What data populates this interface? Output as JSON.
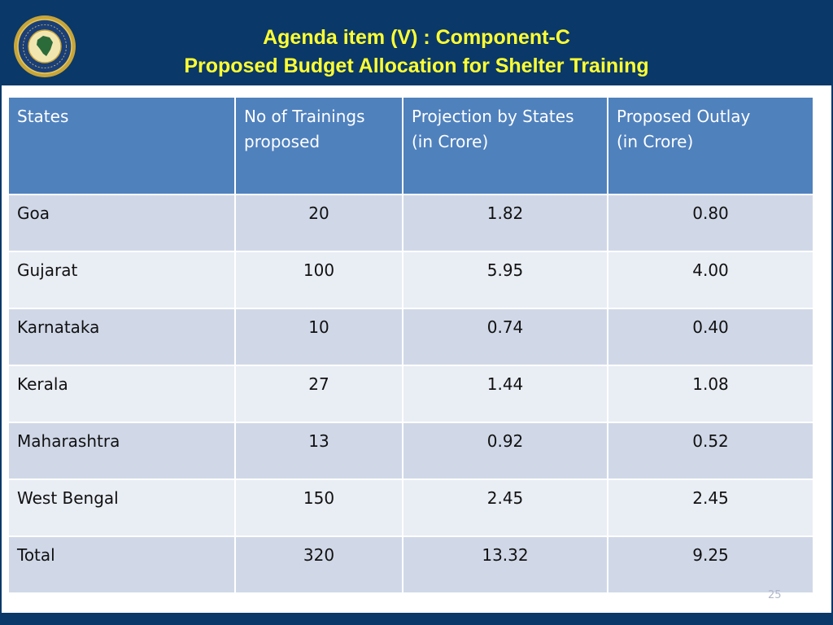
{
  "header": {
    "title_line1": "Agenda item (V) : Component-C",
    "title_line2": "Proposed Budget Allocation  for Shelter Training",
    "logo_icon": "disaster-management-seal-icon",
    "colors": {
      "band": "#0a3868",
      "title": "#ffff33"
    }
  },
  "table": {
    "columns": [
      "States",
      "No of Trainings proposed",
      "Projection by States (in Crore)",
      "Proposed Outlay (in Crore)"
    ],
    "header_lines": [
      [
        "States"
      ],
      [
        "No of Trainings",
        "proposed"
      ],
      [
        "Projection by States",
        "(in Crore)"
      ],
      [
        "Proposed Outlay",
        "(in Crore)"
      ]
    ],
    "rows": [
      [
        "Goa",
        "20",
        "1.82",
        "0.80"
      ],
      [
        "Gujarat",
        "100",
        "5.95",
        "4.00"
      ],
      [
        "Karnataka",
        "10",
        "0.74",
        "0.40"
      ],
      [
        "Kerala",
        "27",
        "1.44",
        "1.08"
      ],
      [
        "Maharashtra",
        "13",
        "0.92",
        "0.52"
      ],
      [
        "West Bengal",
        "150",
        "2.45",
        "2.45"
      ],
      [
        "Total",
        "320",
        "13.32",
        "9.25"
      ]
    ],
    "colors": {
      "header": "#4f81bd",
      "row_dark": "#d0d8e8",
      "row_light": "#e9edf4"
    }
  },
  "footer": {
    "page_number": "25"
  }
}
